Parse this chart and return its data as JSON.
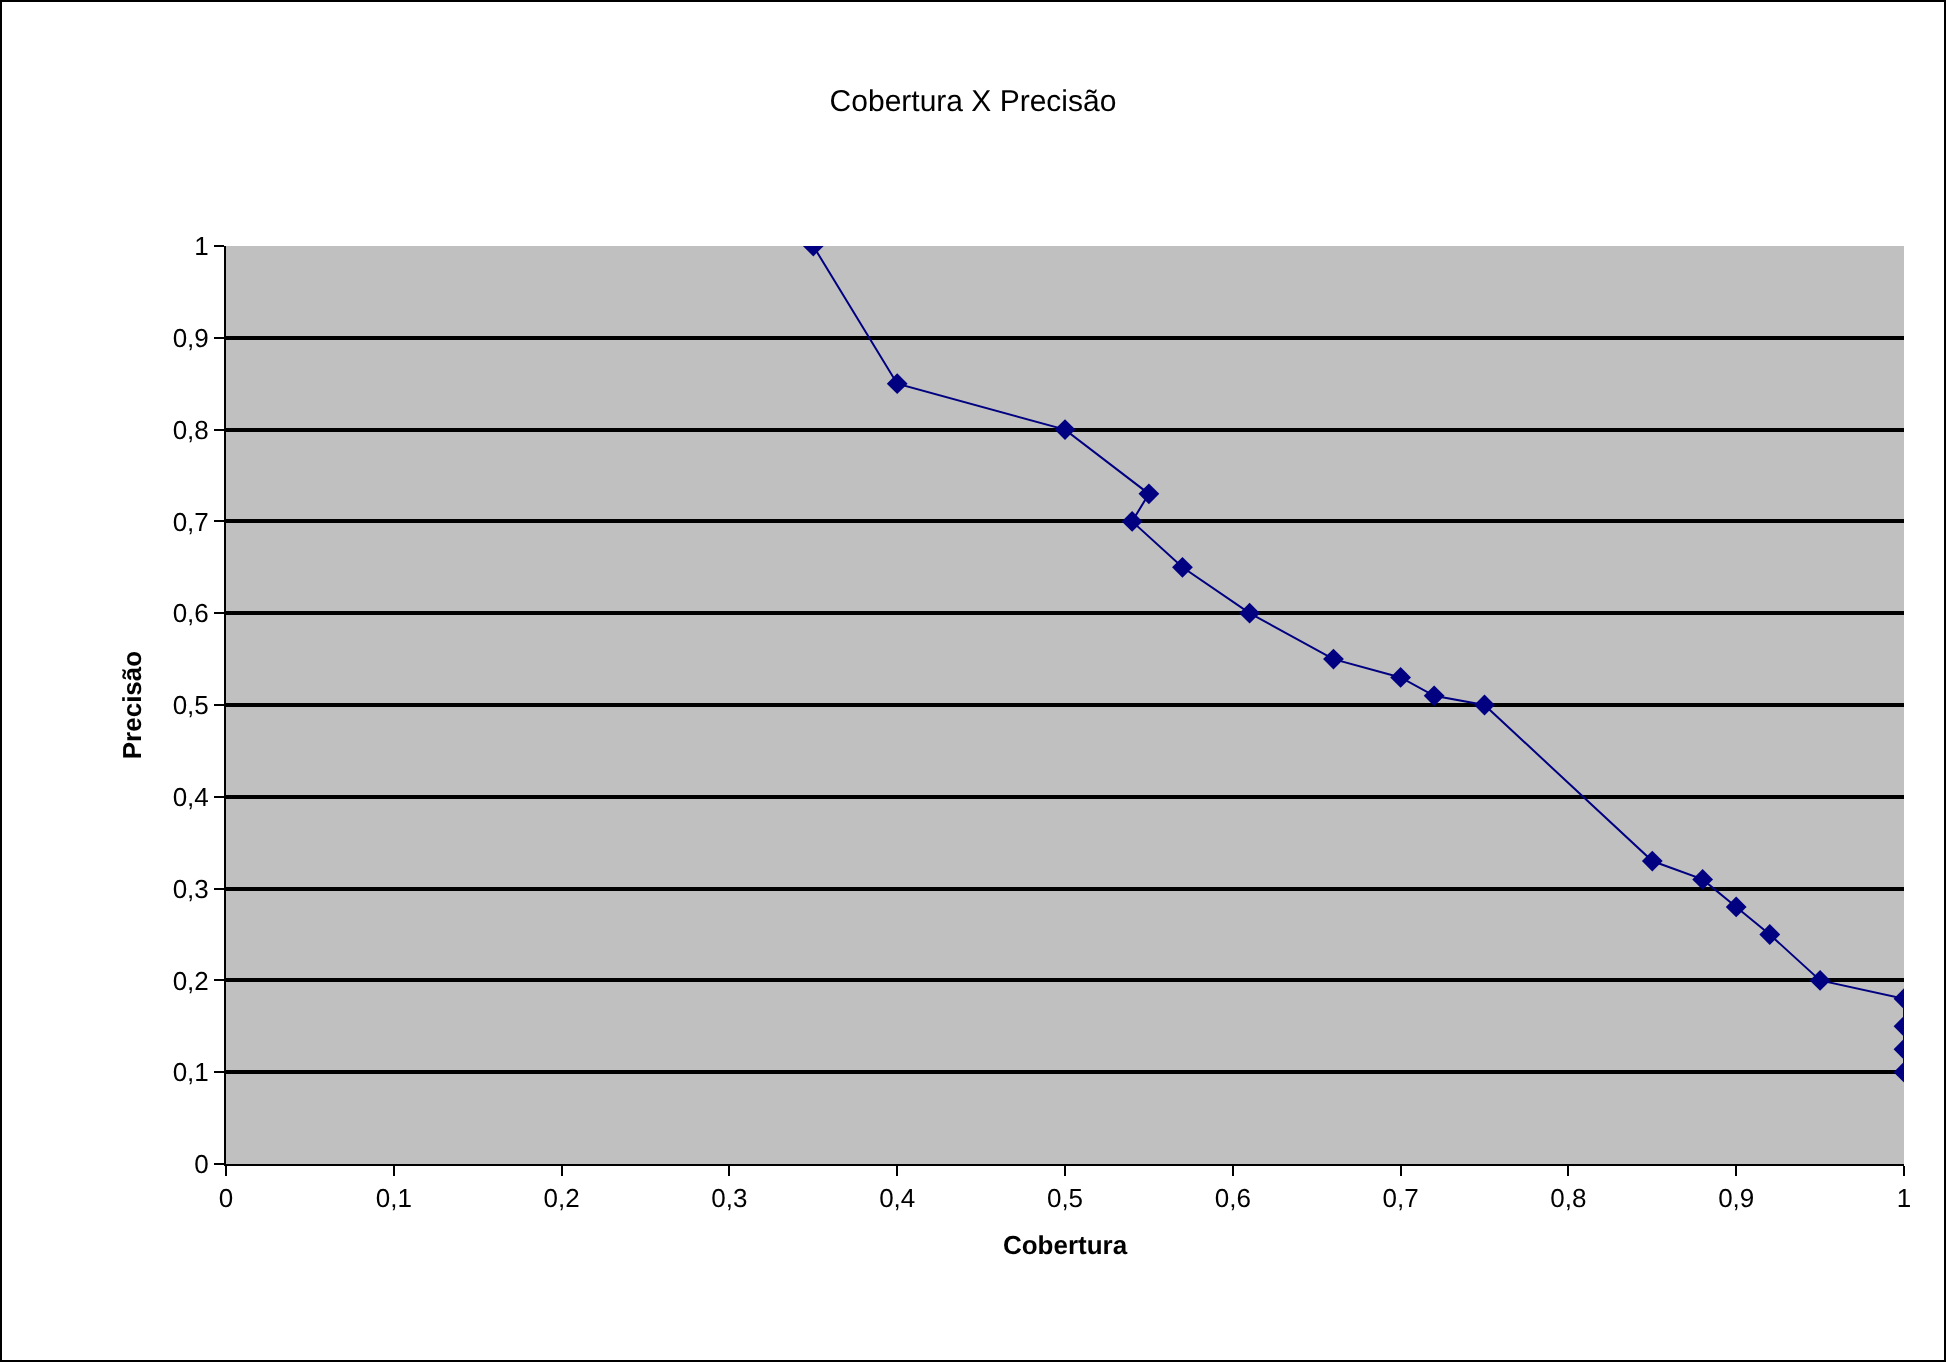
{
  "chart_data": {
    "type": "line",
    "title": "Cobertura X Precisão",
    "xlabel": "Cobertura",
    "ylabel": "Precisão",
    "x": [
      0.35,
      0.4,
      0.5,
      0.55,
      0.54,
      0.57,
      0.61,
      0.66,
      0.7,
      0.72,
      0.75,
      0.85,
      0.88,
      0.9,
      0.92,
      0.95,
      1,
      1,
      1,
      1
    ],
    "series": [
      {
        "color": "#000080",
        "values": [
          1,
          0.85,
          0.8,
          0.73,
          0.7,
          0.65,
          0.6,
          0.55,
          0.53,
          0.51,
          0.5,
          0.33,
          0.31,
          0.28,
          0.25,
          0.2,
          0.18,
          0.15,
          0.125,
          0.1
        ]
      }
    ],
    "xlim": [
      0,
      1
    ],
    "xticks": [
      {
        "value": 0,
        "label": "0"
      },
      {
        "value": 0.1,
        "label": "0,1"
      },
      {
        "value": 0.2,
        "label": "0,2"
      },
      {
        "value": 0.3,
        "label": "0,3"
      },
      {
        "value": 0.4,
        "label": "0,4"
      },
      {
        "value": 0.5,
        "label": "0,5"
      },
      {
        "value": 0.6,
        "label": "0,6"
      },
      {
        "value": 0.7,
        "label": "0,7"
      },
      {
        "value": 0.8,
        "label": "0,8"
      },
      {
        "value": 0.9,
        "label": "0,9"
      },
      {
        "value": 1,
        "label": "1"
      }
    ],
    "ylim": [
      0,
      1
    ],
    "yticks": [
      {
        "value": 0,
        "label": "0"
      },
      {
        "value": 0.1,
        "label": "0,1"
      },
      {
        "value": 0.2,
        "label": "0,2"
      },
      {
        "value": 0.3,
        "label": "0,3"
      },
      {
        "value": 0.4,
        "label": "0,4"
      },
      {
        "value": 0.5,
        "label": "0,5"
      },
      {
        "value": 0.6,
        "label": "0,6"
      },
      {
        "value": 0.7,
        "label": "0,7"
      },
      {
        "value": 0.8,
        "label": "0,8"
      },
      {
        "value": 0.9,
        "label": "0,9"
      },
      {
        "value": 1,
        "label": "1"
      }
    ],
    "grid": "y",
    "marker": "diamond",
    "line_style": "solid"
  }
}
